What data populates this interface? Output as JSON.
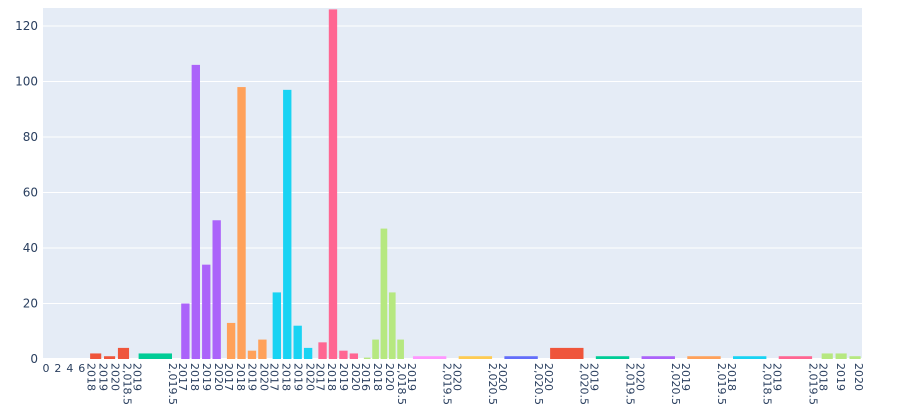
{
  "chart_data": {
    "type": "bar",
    "layout": "faceted-columns",
    "ylim": [
      0,
      126
    ],
    "yticks": [
      0,
      20,
      40,
      60,
      80,
      100,
      120
    ],
    "grid": true,
    "colors": {
      "plot_bg": "#e5ecf6",
      "grid": "#ffffff",
      "text": "#2a3f5f"
    },
    "panels": [
      {
        "color": "#636efa",
        "ticks": [
          "0",
          "2",
          "4",
          "6"
        ],
        "bars": []
      },
      {
        "color": "#ef553b",
        "ticks": [
          "2018",
          "2019",
          "2020",
          "2,018.5"
        ],
        "bars": [
          {
            "x": 2018,
            "y": 2
          },
          {
            "x": 2019,
            "y": 1
          },
          {
            "x": 2020,
            "y": 4
          }
        ]
      },
      {
        "color": "#00cc96",
        "ticks": [
          "2019",
          "2,019.5"
        ],
        "bars": [
          {
            "x": 2019,
            "y": 2
          }
        ]
      },
      {
        "color": "#ab63fa",
        "ticks": [
          "2017",
          "2018",
          "2019",
          "2020"
        ],
        "bars": [
          {
            "x": 2017,
            "y": 20
          },
          {
            "x": 2018,
            "y": 106
          },
          {
            "x": 2019,
            "y": 34
          },
          {
            "x": 2020,
            "y": 50
          }
        ]
      },
      {
        "color": "#ffa15a",
        "ticks": [
          "2017",
          "2018",
          "2019",
          "2020"
        ],
        "bars": [
          {
            "x": 2017,
            "y": 13
          },
          {
            "x": 2018,
            "y": 98
          },
          {
            "x": 2019,
            "y": 3
          },
          {
            "x": 2020,
            "y": 7
          }
        ]
      },
      {
        "color": "#19d3f3",
        "ticks": [
          "2017",
          "2018",
          "2019",
          "2020"
        ],
        "bars": [
          {
            "x": 2017,
            "y": 24
          },
          {
            "x": 2018,
            "y": 97
          },
          {
            "x": 2019,
            "y": 12
          },
          {
            "x": 2020,
            "y": 4
          }
        ]
      },
      {
        "color": "#ff6692",
        "ticks": [
          "2017",
          "2018",
          "2019",
          "2020"
        ],
        "bars": [
          {
            "x": 2017,
            "y": 6
          },
          {
            "x": 2018,
            "y": 126
          },
          {
            "x": 2019,
            "y": 3
          },
          {
            "x": 2020,
            "y": 2
          }
        ]
      },
      {
        "color": "#b6e880",
        "ticks": [
          "2016",
          "2018",
          "2020",
          "2,018.5"
        ],
        "bars": [
          {
            "x": 2016,
            "y": 0.5
          },
          {
            "x": 2017,
            "y": 7
          },
          {
            "x": 2018,
            "y": 47
          },
          {
            "x": 2019,
            "y": 24
          },
          {
            "x": 2020,
            "y": 7
          }
        ]
      },
      {
        "color": "#ff97ff",
        "ticks": [
          "2019",
          "2,019.5"
        ],
        "bars": [
          {
            "x": 2019,
            "y": 1
          }
        ]
      },
      {
        "color": "#fecb52",
        "ticks": [
          "2020",
          "2,020.5"
        ],
        "bars": [
          {
            "x": 2020,
            "y": 1
          }
        ]
      },
      {
        "color": "#636efa",
        "ticks": [
          "2020",
          "2,020.5"
        ],
        "bars": [
          {
            "x": 2020,
            "y": 1
          }
        ]
      },
      {
        "color": "#ef553b",
        "ticks": [
          "2020",
          "2,020.5"
        ],
        "bars": [
          {
            "x": 2020,
            "y": 4
          }
        ]
      },
      {
        "color": "#00cc96",
        "ticks": [
          "2019",
          "2,019.5"
        ],
        "bars": [
          {
            "x": 2019,
            "y": 1
          }
        ]
      },
      {
        "color": "#ab63fa",
        "ticks": [
          "2020",
          "2,020.5"
        ],
        "bars": [
          {
            "x": 2020,
            "y": 1
          }
        ]
      },
      {
        "color": "#ffa15a",
        "ticks": [
          "2019",
          "2,019.5"
        ],
        "bars": [
          {
            "x": 2019,
            "y": 1
          }
        ]
      },
      {
        "color": "#19d3f3",
        "ticks": [
          "2018",
          "2,018.5"
        ],
        "bars": [
          {
            "x": 2018,
            "y": 1
          }
        ]
      },
      {
        "color": "#ff6692",
        "ticks": [
          "2019",
          "2,019.5"
        ],
        "bars": [
          {
            "x": 2019,
            "y": 1
          }
        ]
      },
      {
        "color": "#b6e880",
        "ticks": [
          "2018",
          "2019",
          "2020"
        ],
        "bars": [
          {
            "x": 2018,
            "y": 2
          },
          {
            "x": 2019,
            "y": 2
          },
          {
            "x": 2020,
            "y": 1
          }
        ]
      }
    ]
  }
}
